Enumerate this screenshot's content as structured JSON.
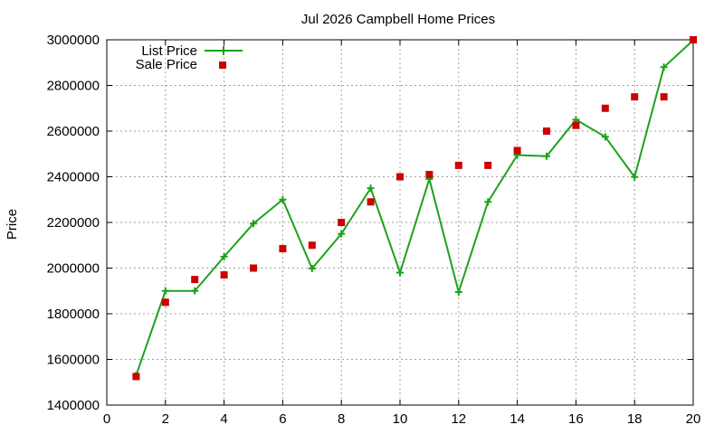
{
  "chart_data": {
    "type": "line",
    "title": "Jul 2026 Campbell Home Prices",
    "xlabel": "",
    "ylabel": "Price",
    "xlim": [
      0,
      20
    ],
    "ylim": [
      1400000,
      3000000
    ],
    "x_ticks": [
      0,
      2,
      4,
      6,
      8,
      10,
      12,
      14,
      16,
      18,
      20
    ],
    "y_ticks": [
      1400000,
      1600000,
      1800000,
      2000000,
      2200000,
      2400000,
      2600000,
      2800000,
      3000000
    ],
    "grid": true,
    "legend_position": "top-left",
    "series": [
      {
        "name": "List Price",
        "style": "line-with-plus-markers",
        "color": "#1aa31a",
        "x": [
          1,
          2,
          3,
          4,
          5,
          6,
          7,
          8,
          9,
          10,
          11,
          12,
          13,
          14,
          15,
          16,
          17,
          18,
          19,
          20
        ],
        "values": [
          1530000,
          1900000,
          1900000,
          2050000,
          2195000,
          2300000,
          1998000,
          2150000,
          2350000,
          1980000,
          2390000,
          1895000,
          2290000,
          2495000,
          2490000,
          2650000,
          2575000,
          2399000,
          2880000,
          2998000
        ]
      },
      {
        "name": "Sale Price",
        "style": "square-markers",
        "color": "#cc0000",
        "x": [
          1,
          2,
          3,
          4,
          5,
          6,
          7,
          8,
          9,
          10,
          11,
          12,
          13,
          14,
          15,
          16,
          17,
          18,
          19,
          20
        ],
        "values": [
          1525000,
          1850000,
          1950000,
          1970000,
          2000000,
          2085000,
          2100000,
          2200000,
          2290000,
          2400000,
          2410000,
          2450000,
          2450000,
          2515000,
          2600000,
          2625000,
          2700000,
          2750000,
          2750000,
          3000000
        ]
      }
    ]
  }
}
